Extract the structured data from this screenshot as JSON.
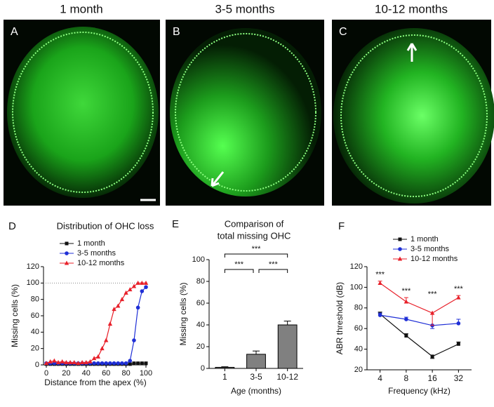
{
  "images": [
    {
      "title": "1 month",
      "panel": "A"
    },
    {
      "title": "3-5 months",
      "panel": "B"
    },
    {
      "title": "10-12 months",
      "panel": "C"
    }
  ],
  "chart_data": [
    {
      "type": "line",
      "panel": "D",
      "title": "Distribution of OHC loss",
      "xlabel": "Distance from the apex (%)",
      "ylabel": "Missing cells (%)",
      "x": [
        0,
        4,
        8,
        12,
        16,
        20,
        24,
        28,
        32,
        36,
        40,
        44,
        48,
        52,
        56,
        60,
        64,
        68,
        72,
        76,
        80,
        84,
        88,
        92,
        96,
        100
      ],
      "xlim": [
        0,
        100
      ],
      "xticks": [
        0,
        20,
        40,
        60,
        80,
        100
      ],
      "ylim": [
        0,
        120
      ],
      "yticks": [
        0,
        20,
        40,
        60,
        80,
        100,
        120
      ],
      "reference_line": 100,
      "series": [
        {
          "name": "1 month",
          "color": "#111111",
          "marker": "square",
          "values": [
            1,
            1,
            1,
            1,
            1,
            1,
            1,
            1,
            1,
            1,
            1,
            1,
            1,
            1,
            1,
            1,
            1,
            1,
            1,
            1,
            1,
            1,
            2,
            2,
            2,
            2
          ]
        },
        {
          "name": "3-5 months",
          "color": "#1f2fd6",
          "marker": "circle",
          "values": [
            2,
            2,
            2,
            2,
            2,
            2,
            2,
            2,
            2,
            2,
            2,
            2,
            2,
            2,
            2,
            2,
            2,
            2,
            2,
            2,
            2,
            5,
            30,
            70,
            90,
            95
          ]
        },
        {
          "name": "10-12 months",
          "color": "#e8202a",
          "marker": "triangle",
          "values": [
            2,
            4,
            5,
            3,
            4,
            3,
            3,
            3,
            2,
            3,
            3,
            4,
            8,
            10,
            20,
            30,
            50,
            68,
            72,
            80,
            88,
            92,
            96,
            100,
            100,
            100
          ]
        }
      ]
    },
    {
      "type": "bar",
      "panel": "E",
      "title": [
        "Comparison of",
        "total missing OHC"
      ],
      "xlabel": "Age (months)",
      "ylabel": "Missing cells (%)",
      "categories": [
        "1",
        "3-5",
        "10-12"
      ],
      "values": [
        1,
        13,
        40
      ],
      "errors": [
        0.5,
        3,
        3.5
      ],
      "color": "#808080",
      "ylim": [
        0,
        100
      ],
      "yticks": [
        0,
        20,
        40,
        60,
        80,
        100
      ],
      "significance": [
        "***",
        "***",
        "***"
      ]
    },
    {
      "type": "line",
      "panel": "F",
      "xlabel": "Frequency (kHz)",
      "ylabel": "ABR threshold (dB)",
      "categories": [
        "4",
        "8",
        "16",
        "32"
      ],
      "ylim": [
        20,
        120
      ],
      "yticks": [
        20,
        40,
        60,
        80,
        100,
        120
      ],
      "significance": [
        "***",
        "***",
        "***",
        "***"
      ],
      "series": [
        {
          "name": "1 month",
          "color": "#111111",
          "marker": "square",
          "values": [
            74,
            53,
            33,
            45
          ],
          "errors": [
            2,
            2,
            2,
            2
          ]
        },
        {
          "name": "3-5 months",
          "color": "#1f2fd6",
          "marker": "circle",
          "values": [
            73,
            69,
            63,
            65
          ],
          "errors": [
            2,
            2,
            3,
            4
          ]
        },
        {
          "name": "10-12 months",
          "color": "#e8202a",
          "marker": "triangle",
          "values": [
            104,
            86,
            75,
            90
          ],
          "errors": [
            2,
            4,
            12,
            2
          ]
        }
      ]
    }
  ]
}
